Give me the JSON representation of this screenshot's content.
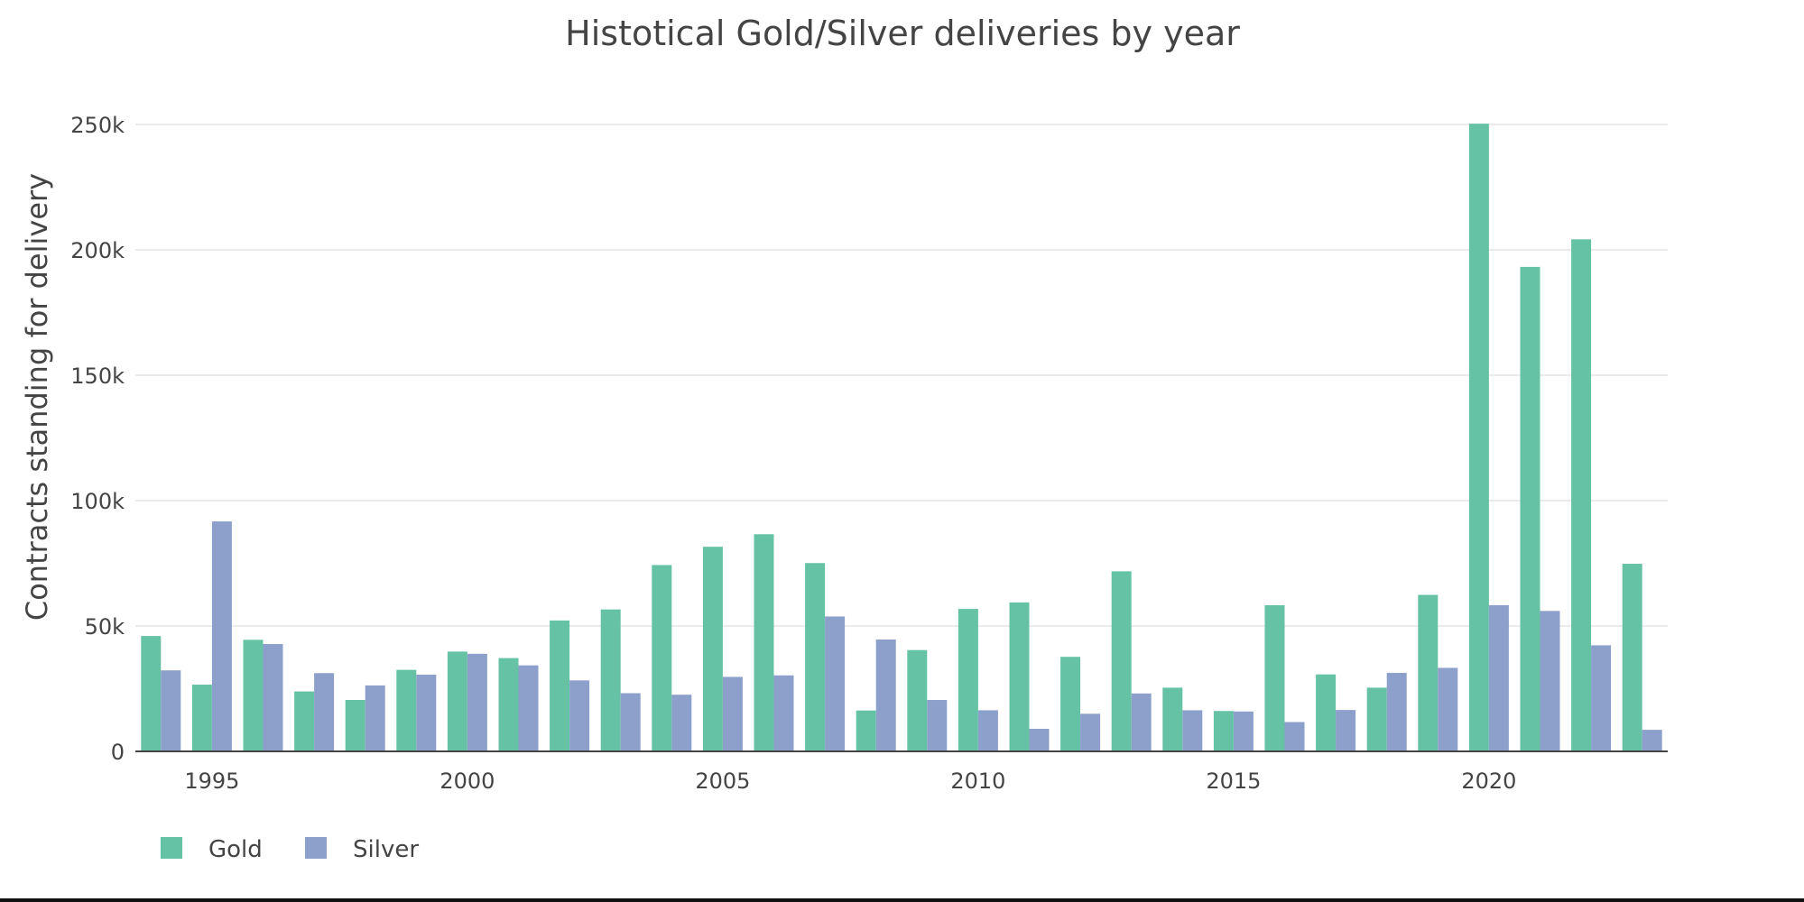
{
  "chart_data": {
    "type": "bar",
    "title": "Histotical Gold/Silver deliveries by year",
    "xlabel": "",
    "ylabel": "Contracts standing for delivery",
    "ylim": [
      0,
      250000
    ],
    "xlim": [
      1993.5,
      2023.5
    ],
    "grid": true,
    "legend_position": "bottom-left",
    "x_ticks": [
      {
        "value": 1995,
        "label": "1995"
      },
      {
        "value": 2000,
        "label": "2000"
      },
      {
        "value": 2005,
        "label": "2005"
      },
      {
        "value": 2010,
        "label": "2010"
      },
      {
        "value": 2015,
        "label": "2015"
      },
      {
        "value": 2020,
        "label": "2020"
      }
    ],
    "y_ticks": [
      {
        "value": 0,
        "label": "0"
      },
      {
        "value": 50000,
        "label": "50k"
      },
      {
        "value": 100000,
        "label": "100k"
      },
      {
        "value": 150000,
        "label": "150k"
      },
      {
        "value": 200000,
        "label": "200k"
      },
      {
        "value": 250000,
        "label": "250k"
      }
    ],
    "categories": [
      1994,
      1995,
      1996,
      1997,
      1998,
      1999,
      2000,
      2001,
      2002,
      2003,
      2004,
      2005,
      2006,
      2007,
      2008,
      2009,
      2010,
      2011,
      2012,
      2013,
      2014,
      2015,
      2016,
      2017,
      2018,
      2019,
      2020,
      2021,
      2022,
      2023
    ],
    "series": [
      {
        "name": "Gold",
        "color": "#66c2a5",
        "values": [
          46000,
          26600,
          44500,
          23900,
          20500,
          32500,
          39800,
          37200,
          52200,
          56600,
          74300,
          81600,
          86600,
          75100,
          16300,
          40400,
          56800,
          59400,
          37700,
          71800,
          25400,
          16100,
          58300,
          30700,
          25400,
          62400,
          250300,
          193200,
          204200,
          74800
        ]
      },
      {
        "name": "Silver",
        "color": "#8da0cb",
        "values": [
          32300,
          91700,
          42800,
          31200,
          26300,
          30600,
          38900,
          34300,
          28300,
          23200,
          22600,
          29700,
          30300,
          53800,
          44600,
          20500,
          16400,
          9000,
          15000,
          23100,
          16400,
          15900,
          11700,
          16500,
          31300,
          33300,
          58300,
          56000,
          42300,
          8600
        ]
      }
    ]
  }
}
